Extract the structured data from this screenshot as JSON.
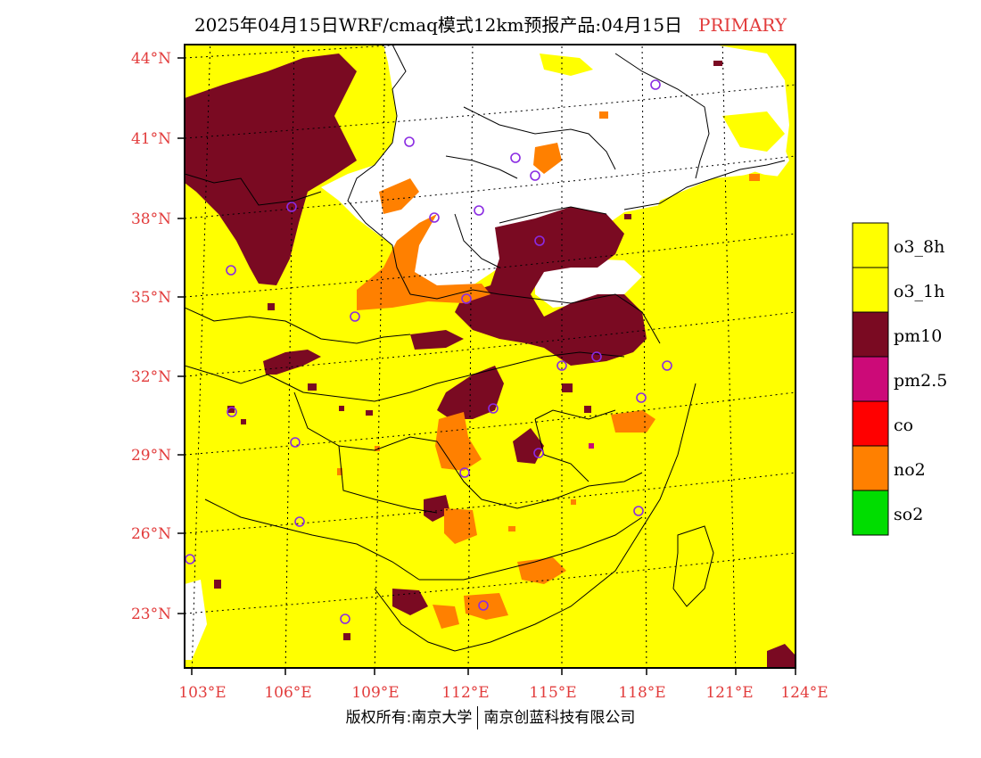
{
  "title": {
    "text": "2025年04月15日WRF/cmaq模式12km预报产品:04月15日",
    "tag": "PRIMARY"
  },
  "map": {
    "lat_labels": [
      "44°N",
      "41°N",
      "38°N",
      "35°N",
      "32°N",
      "29°N",
      "26°N",
      "23°N"
    ],
    "lon_labels": [
      "103°E",
      "106°E",
      "109°E",
      "112°E",
      "115°E",
      "118°E",
      "121°E",
      "124°E"
    ]
  },
  "legend": {
    "items": [
      {
        "label": "o3_8h",
        "color": "#ffff00"
      },
      {
        "label": "o3_1h",
        "color": "#ffff00"
      },
      {
        "label": "pm10",
        "color": "#7a0a22"
      },
      {
        "label": "pm2.5",
        "color": "#cc0a78"
      },
      {
        "label": "co",
        "color": "#ff0000"
      },
      {
        "label": "no2",
        "color": "#ff8000"
      },
      {
        "label": "so2",
        "color": "#00dd00"
      }
    ]
  },
  "footer": {
    "left": "版权所有:南京大学",
    "right": "南京创蓝科技有限公司"
  },
  "colors": {
    "o3": "#ffff00",
    "pm10": "#7a0a22",
    "no2": "#ff8000",
    "pm25": "#cc0a78",
    "none": "#ffffff",
    "station": "#8a2be2",
    "label": "#e23c3c"
  }
}
